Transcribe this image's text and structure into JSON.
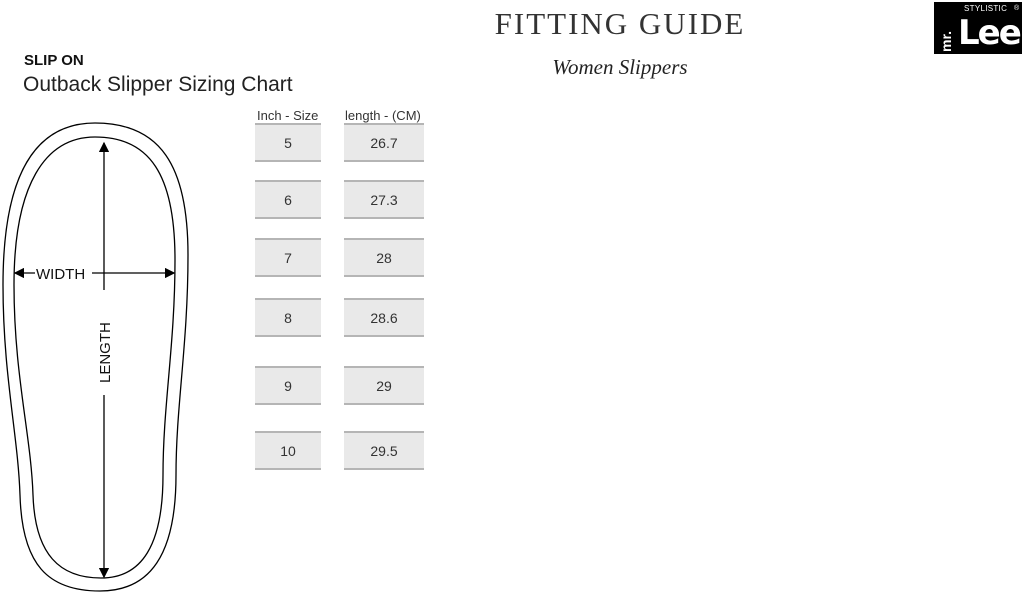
{
  "header": {
    "title": "FITTING GUIDE",
    "subtitle": "Women Slippers"
  },
  "logo": {
    "brand": "mr. Lee",
    "tagline": "STYLISTIC",
    "mark": "®",
    "colors": {
      "bg": "#000000",
      "fg": "#ffffff"
    }
  },
  "section": {
    "label": "SLIP ON",
    "title": "Outback Slipper Sizing Chart"
  },
  "diagram": {
    "width_label": "WIDTH",
    "length_label": "LENGTH"
  },
  "table": {
    "headers": [
      "Inch - Size",
      "length - (CM)"
    ],
    "rows": [
      {
        "size": "5",
        "length": "26.7"
      },
      {
        "size": "6",
        "length": "27.3"
      },
      {
        "size": "7",
        "length": "28"
      },
      {
        "size": "8",
        "length": "28.6"
      },
      {
        "size": "9",
        "length": "29"
      },
      {
        "size": "10",
        "length": "29.5"
      }
    ]
  }
}
